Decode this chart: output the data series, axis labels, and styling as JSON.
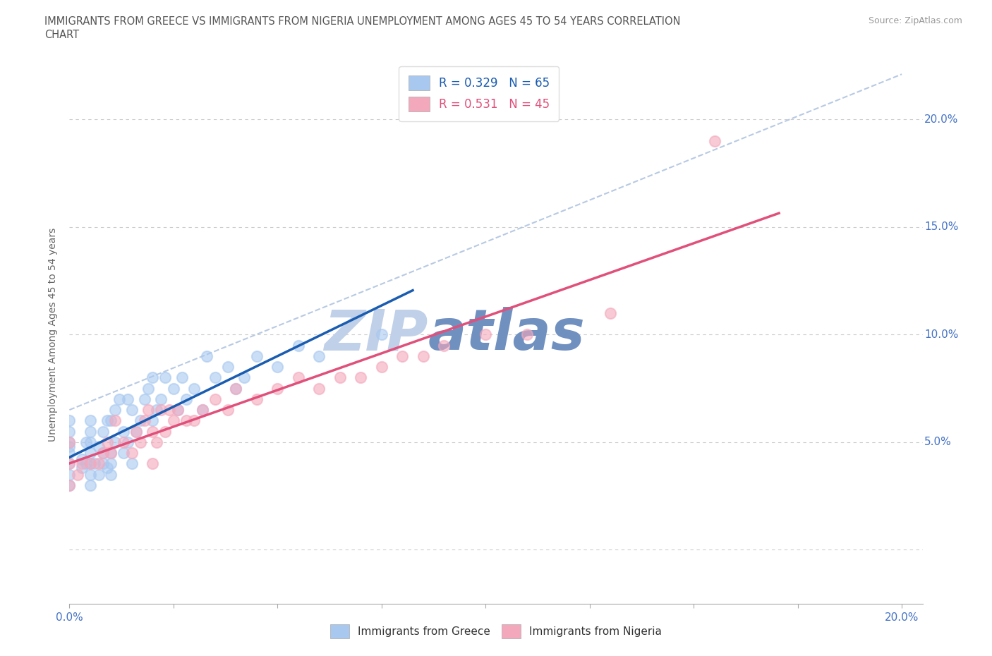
{
  "title_line1": "IMMIGRANTS FROM GREECE VS IMMIGRANTS FROM NIGERIA UNEMPLOYMENT AMONG AGES 45 TO 54 YEARS CORRELATION",
  "title_line2": "CHART",
  "source_text": "Source: ZipAtlas.com",
  "ylabel": "Unemployment Among Ages 45 to 54 years",
  "xlim": [
    0.0,
    0.205
  ],
  "ylim": [
    -0.025,
    0.225
  ],
  "R_greece": 0.329,
  "N_greece": 65,
  "R_nigeria": 0.531,
  "N_nigeria": 45,
  "greece_color": "#A8C8F0",
  "nigeria_color": "#F4A8BC",
  "greece_line_color": "#1A5CB0",
  "nigeria_line_color": "#E0507A",
  "dashed_line_color": "#B0C4E0",
  "watermark_color_zip": "#C0D0E8",
  "watermark_color_atlas": "#7090C0",
  "background_color": "#FFFFFF",
  "tick_color": "#4472C4",
  "ylabel_color": "#666666",
  "title_color": "#555555",
  "greece_scatter_x": [
    0.0,
    0.0,
    0.0,
    0.0,
    0.0,
    0.0,
    0.0,
    0.0,
    0.003,
    0.003,
    0.004,
    0.004,
    0.005,
    0.005,
    0.005,
    0.005,
    0.005,
    0.005,
    0.005,
    0.006,
    0.007,
    0.007,
    0.008,
    0.008,
    0.008,
    0.009,
    0.009,
    0.01,
    0.01,
    0.01,
    0.01,
    0.011,
    0.011,
    0.012,
    0.013,
    0.013,
    0.014,
    0.014,
    0.015,
    0.015,
    0.016,
    0.017,
    0.018,
    0.019,
    0.02,
    0.02,
    0.021,
    0.022,
    0.023,
    0.025,
    0.026,
    0.027,
    0.028,
    0.03,
    0.032,
    0.033,
    0.035,
    0.038,
    0.04,
    0.042,
    0.045,
    0.05,
    0.055,
    0.06,
    0.075
  ],
  "greece_scatter_y": [
    0.03,
    0.035,
    0.04,
    0.045,
    0.048,
    0.05,
    0.055,
    0.06,
    0.038,
    0.042,
    0.04,
    0.05,
    0.03,
    0.035,
    0.04,
    0.045,
    0.05,
    0.055,
    0.06,
    0.04,
    0.035,
    0.048,
    0.04,
    0.045,
    0.055,
    0.038,
    0.06,
    0.035,
    0.04,
    0.045,
    0.06,
    0.05,
    0.065,
    0.07,
    0.045,
    0.055,
    0.05,
    0.07,
    0.04,
    0.065,
    0.055,
    0.06,
    0.07,
    0.075,
    0.06,
    0.08,
    0.065,
    0.07,
    0.08,
    0.075,
    0.065,
    0.08,
    0.07,
    0.075,
    0.065,
    0.09,
    0.08,
    0.085,
    0.075,
    0.08,
    0.09,
    0.085,
    0.095,
    0.09,
    0.1
  ],
  "nigeria_scatter_x": [
    0.0,
    0.0,
    0.0,
    0.002,
    0.003,
    0.005,
    0.007,
    0.008,
    0.009,
    0.01,
    0.011,
    0.013,
    0.015,
    0.016,
    0.017,
    0.018,
    0.019,
    0.02,
    0.02,
    0.021,
    0.022,
    0.023,
    0.024,
    0.025,
    0.026,
    0.028,
    0.03,
    0.032,
    0.035,
    0.038,
    0.04,
    0.045,
    0.05,
    0.055,
    0.06,
    0.065,
    0.07,
    0.075,
    0.08,
    0.085,
    0.09,
    0.1,
    0.11,
    0.13,
    0.155
  ],
  "nigeria_scatter_y": [
    0.03,
    0.04,
    0.05,
    0.035,
    0.04,
    0.04,
    0.04,
    0.045,
    0.05,
    0.045,
    0.06,
    0.05,
    0.045,
    0.055,
    0.05,
    0.06,
    0.065,
    0.04,
    0.055,
    0.05,
    0.065,
    0.055,
    0.065,
    0.06,
    0.065,
    0.06,
    0.06,
    0.065,
    0.07,
    0.065,
    0.075,
    0.07,
    0.075,
    0.08,
    0.075,
    0.08,
    0.08,
    0.085,
    0.09,
    0.09,
    0.095,
    0.1,
    0.1,
    0.11,
    0.19
  ]
}
